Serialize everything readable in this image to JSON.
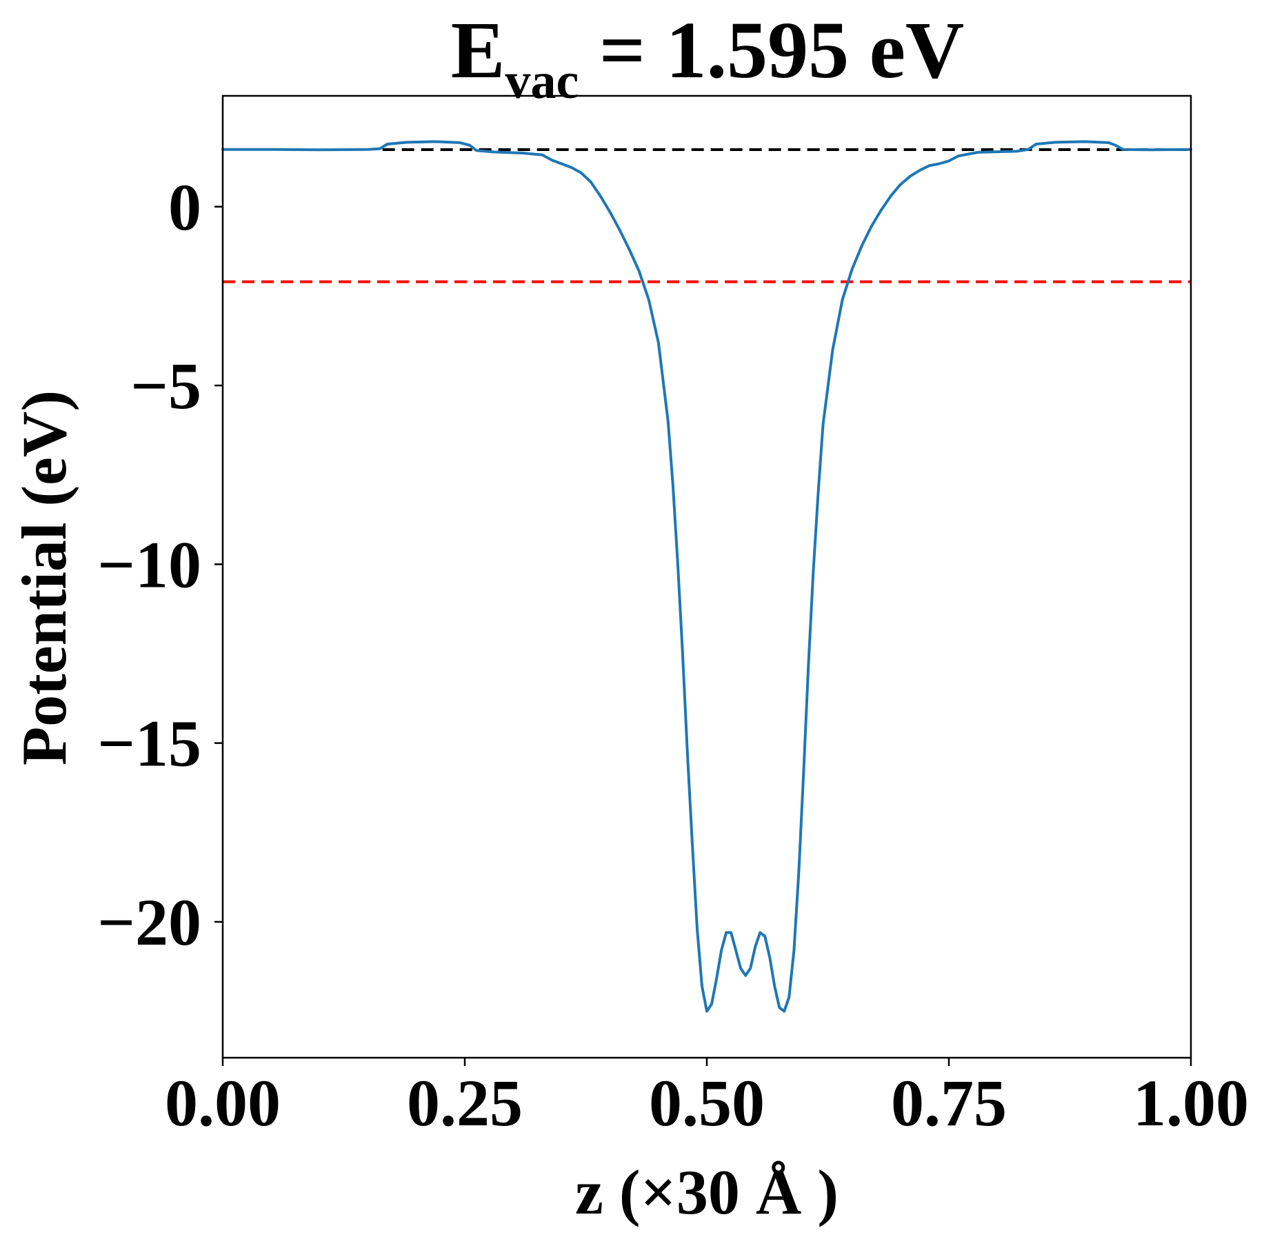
{
  "chart_data": {
    "type": "line",
    "title": {
      "main": "E",
      "subscript": "vac",
      "rest": " = 1.595 eV"
    },
    "xlabel": "z (×30 Å )",
    "ylabel": "Potential (eV)",
    "xlim": [
      0.0,
      1.0
    ],
    "ylim": [
      -23.8,
      3.1
    ],
    "xticks": [
      {
        "value": 0.0,
        "label": "0.00"
      },
      {
        "value": 0.25,
        "label": "0.25"
      },
      {
        "value": 0.5,
        "label": "0.50"
      },
      {
        "value": 0.75,
        "label": "0.75"
      },
      {
        "value": 1.0,
        "label": "1.00"
      }
    ],
    "yticks": [
      {
        "value": 0,
        "label": "0"
      },
      {
        "value": -5,
        "label": "−5"
      },
      {
        "value": -10,
        "label": "−10"
      },
      {
        "value": -15,
        "label": "−15"
      },
      {
        "value": -20,
        "label": "−20"
      }
    ],
    "grid": false,
    "reference_lines": [
      {
        "name": "vacuum-level",
        "y": 1.595,
        "x_range": [
          0.165,
          1.0
        ],
        "color": "#000000",
        "style": "dashed"
      },
      {
        "name": "fermi-level",
        "y": -2.1,
        "x_range": [
          0.0,
          1.0
        ],
        "color": "#ff0000",
        "style": "dashed"
      }
    ],
    "series": [
      {
        "color": "#1f77b4",
        "points": [
          [
            0.0,
            1.6
          ],
          [
            0.05,
            1.6
          ],
          [
            0.1,
            1.59
          ],
          [
            0.15,
            1.6
          ],
          [
            0.162,
            1.62
          ],
          [
            0.17,
            1.75
          ],
          [
            0.19,
            1.8
          ],
          [
            0.22,
            1.82
          ],
          [
            0.245,
            1.79
          ],
          [
            0.255,
            1.72
          ],
          [
            0.262,
            1.57
          ],
          [
            0.28,
            1.53
          ],
          [
            0.31,
            1.5
          ],
          [
            0.33,
            1.45
          ],
          [
            0.34,
            1.3
          ],
          [
            0.35,
            1.2
          ],
          [
            0.36,
            1.1
          ],
          [
            0.37,
            0.95
          ],
          [
            0.38,
            0.7
          ],
          [
            0.39,
            0.3
          ],
          [
            0.4,
            -0.15
          ],
          [
            0.41,
            -0.65
          ],
          [
            0.42,
            -1.2
          ],
          [
            0.43,
            -1.8
          ],
          [
            0.44,
            -2.6
          ],
          [
            0.45,
            -3.8
          ],
          [
            0.46,
            -6.0
          ],
          [
            0.465,
            -7.8
          ],
          [
            0.47,
            -10.0
          ],
          [
            0.475,
            -12.5
          ],
          [
            0.48,
            -15.3
          ],
          [
            0.485,
            -17.8
          ],
          [
            0.49,
            -20.2
          ],
          [
            0.495,
            -21.8
          ],
          [
            0.5,
            -22.5
          ],
          [
            0.505,
            -22.3
          ],
          [
            0.51,
            -21.6
          ],
          [
            0.515,
            -20.8
          ],
          [
            0.52,
            -20.3
          ],
          [
            0.525,
            -20.3
          ],
          [
            0.53,
            -20.8
          ],
          [
            0.535,
            -21.3
          ],
          [
            0.54,
            -21.5
          ],
          [
            0.545,
            -21.3
          ],
          [
            0.55,
            -20.7
          ],
          [
            0.555,
            -20.3
          ],
          [
            0.56,
            -20.4
          ],
          [
            0.565,
            -21.0
          ],
          [
            0.57,
            -21.8
          ],
          [
            0.575,
            -22.4
          ],
          [
            0.58,
            -22.5
          ],
          [
            0.585,
            -22.1
          ],
          [
            0.59,
            -20.8
          ],
          [
            0.595,
            -18.6
          ],
          [
            0.6,
            -15.8
          ],
          [
            0.605,
            -12.8
          ],
          [
            0.61,
            -10.2
          ],
          [
            0.615,
            -8.0
          ],
          [
            0.62,
            -6.1
          ],
          [
            0.63,
            -4.0
          ],
          [
            0.64,
            -2.6
          ],
          [
            0.65,
            -1.75
          ],
          [
            0.66,
            -1.1
          ],
          [
            0.67,
            -0.55
          ],
          [
            0.68,
            -0.1
          ],
          [
            0.69,
            0.3
          ],
          [
            0.7,
            0.62
          ],
          [
            0.71,
            0.85
          ],
          [
            0.72,
            1.02
          ],
          [
            0.73,
            1.15
          ],
          [
            0.74,
            1.2
          ],
          [
            0.75,
            1.28
          ],
          [
            0.76,
            1.42
          ],
          [
            0.78,
            1.52
          ],
          [
            0.82,
            1.55
          ],
          [
            0.832,
            1.6
          ],
          [
            0.84,
            1.75
          ],
          [
            0.86,
            1.8
          ],
          [
            0.89,
            1.82
          ],
          [
            0.915,
            1.79
          ],
          [
            0.922,
            1.72
          ],
          [
            0.93,
            1.6
          ],
          [
            0.96,
            1.59
          ],
          [
            1.0,
            1.6
          ]
        ]
      }
    ]
  }
}
